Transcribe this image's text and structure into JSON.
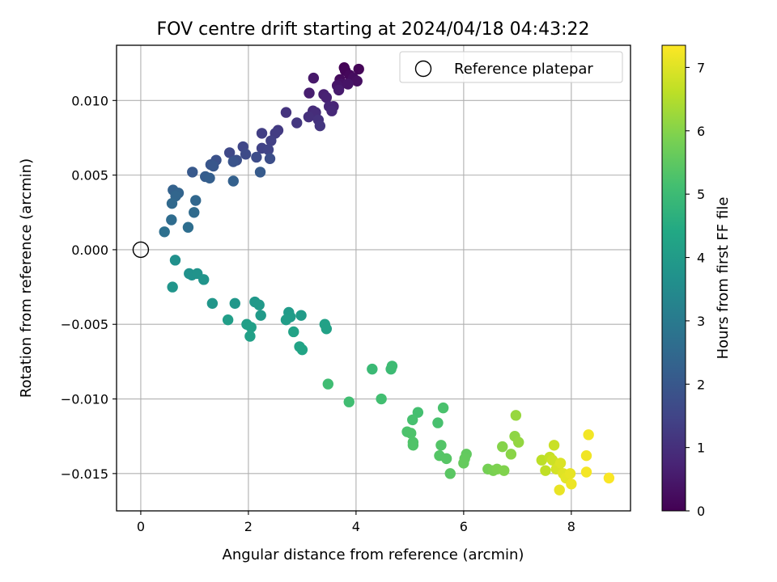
{
  "chart_data": {
    "type": "scatter",
    "title": "FOV centre drift starting at 2024/04/18 04:43:22",
    "xlabel": "Angular distance from reference (arcmin)",
    "ylabel": "Rotation from reference (arcmin)",
    "xlim": [
      -0.45,
      9.1
    ],
    "ylim": [
      -0.0175,
      0.0137
    ],
    "xticks": [
      0,
      2,
      4,
      6,
      8
    ],
    "xtick_labels": [
      "0",
      "2",
      "4",
      "6",
      "8"
    ],
    "yticks": [
      -0.015,
      -0.01,
      -0.005,
      0.0,
      0.005,
      0.01
    ],
    "ytick_labels": [
      "−0.015",
      "−0.010",
      "−0.005",
      "0.000",
      "0.005",
      "0.010"
    ],
    "grid": true,
    "legend": {
      "position": "top-right",
      "entries": [
        "Reference platepar"
      ]
    },
    "reference_point": {
      "x": 0.0,
      "y": 0.0
    },
    "colorbar": {
      "label": "Hours from first FF file",
      "colormap": "viridis",
      "range": [
        0,
        7.35
      ],
      "ticks": [
        0,
        1,
        2,
        3,
        4,
        5,
        6,
        7
      ],
      "tick_labels": [
        "0",
        "1",
        "2",
        "3",
        "4",
        "5",
        "6",
        "7"
      ]
    },
    "points": [
      {
        "x": 3.78,
        "y": 0.0122,
        "t": 0.05
      },
      {
        "x": 3.8,
        "y": 0.012,
        "t": 0.08
      },
      {
        "x": 4.05,
        "y": 0.0121,
        "t": 0.1
      },
      {
        "x": 3.88,
        "y": 0.0117,
        "t": 0.15
      },
      {
        "x": 3.7,
        "y": 0.0114,
        "t": 0.2
      },
      {
        "x": 3.95,
        "y": 0.0115,
        "t": 0.25
      },
      {
        "x": 4.02,
        "y": 0.0113,
        "t": 0.3
      },
      {
        "x": 3.72,
        "y": 0.0111,
        "t": 0.35
      },
      {
        "x": 3.85,
        "y": 0.0111,
        "t": 0.4
      },
      {
        "x": 3.65,
        "y": 0.011,
        "t": 0.45
      },
      {
        "x": 3.21,
        "y": 0.0115,
        "t": 0.5
      },
      {
        "x": 3.68,
        "y": 0.0107,
        "t": 0.55
      },
      {
        "x": 3.13,
        "y": 0.0105,
        "t": 0.6
      },
      {
        "x": 3.4,
        "y": 0.0104,
        "t": 0.65
      },
      {
        "x": 3.45,
        "y": 0.0102,
        "t": 0.7
      },
      {
        "x": 3.58,
        "y": 0.0096,
        "t": 0.75
      },
      {
        "x": 3.5,
        "y": 0.0096,
        "t": 0.8
      },
      {
        "x": 3.55,
        "y": 0.0093,
        "t": 0.85
      },
      {
        "x": 3.2,
        "y": 0.0093,
        "t": 0.9
      },
      {
        "x": 3.25,
        "y": 0.0092,
        "t": 0.95
      },
      {
        "x": 3.12,
        "y": 0.0089,
        "t": 1.0
      },
      {
        "x": 3.3,
        "y": 0.0087,
        "t": 1.05
      },
      {
        "x": 2.7,
        "y": 0.0092,
        "t": 1.1
      },
      {
        "x": 3.33,
        "y": 0.0083,
        "t": 1.15
      },
      {
        "x": 2.9,
        "y": 0.0085,
        "t": 1.2
      },
      {
        "x": 2.55,
        "y": 0.008,
        "t": 1.25
      },
      {
        "x": 2.5,
        "y": 0.0078,
        "t": 1.3
      },
      {
        "x": 2.25,
        "y": 0.0078,
        "t": 1.35
      },
      {
        "x": 2.42,
        "y": 0.0073,
        "t": 1.4
      },
      {
        "x": 2.25,
        "y": 0.0068,
        "t": 1.45
      },
      {
        "x": 2.37,
        "y": 0.0067,
        "t": 1.5
      },
      {
        "x": 1.9,
        "y": 0.0069,
        "t": 1.55
      },
      {
        "x": 1.65,
        "y": 0.0065,
        "t": 1.6
      },
      {
        "x": 1.95,
        "y": 0.0064,
        "t": 1.65
      },
      {
        "x": 2.15,
        "y": 0.0062,
        "t": 1.7
      },
      {
        "x": 2.4,
        "y": 0.0061,
        "t": 1.75
      },
      {
        "x": 1.78,
        "y": 0.006,
        "t": 1.8
      },
      {
        "x": 1.4,
        "y": 0.006,
        "t": 1.85
      },
      {
        "x": 1.72,
        "y": 0.0059,
        "t": 1.9
      },
      {
        "x": 1.3,
        "y": 0.0057,
        "t": 1.95
      },
      {
        "x": 1.35,
        "y": 0.0056,
        "t": 2.0
      },
      {
        "x": 0.96,
        "y": 0.0052,
        "t": 2.05
      },
      {
        "x": 2.22,
        "y": 0.0052,
        "t": 2.1
      },
      {
        "x": 1.2,
        "y": 0.0049,
        "t": 2.15
      },
      {
        "x": 1.28,
        "y": 0.0048,
        "t": 2.2
      },
      {
        "x": 1.72,
        "y": 0.0046,
        "t": 2.25
      },
      {
        "x": 0.6,
        "y": 0.004,
        "t": 2.3
      },
      {
        "x": 0.7,
        "y": 0.0038,
        "t": 2.35
      },
      {
        "x": 0.65,
        "y": 0.0036,
        "t": 2.4
      },
      {
        "x": 1.02,
        "y": 0.0033,
        "t": 2.45
      },
      {
        "x": 0.58,
        "y": 0.0031,
        "t": 2.5
      },
      {
        "x": 0.99,
        "y": 0.0025,
        "t": 2.55
      },
      {
        "x": 0.57,
        "y": 0.002,
        "t": 2.6
      },
      {
        "x": 0.88,
        "y": 0.0015,
        "t": 2.65
      },
      {
        "x": 0.44,
        "y": 0.0012,
        "t": 2.7
      },
      {
        "x": 0.64,
        "y": -0.0007,
        "t": 3.65
      },
      {
        "x": 0.9,
        "y": -0.0016,
        "t": 3.7
      },
      {
        "x": 0.95,
        "y": -0.0017,
        "t": 3.72
      },
      {
        "x": 1.05,
        "y": -0.0016,
        "t": 3.75
      },
      {
        "x": 1.17,
        "y": -0.002,
        "t": 3.78
      },
      {
        "x": 0.59,
        "y": -0.0025,
        "t": 3.8
      },
      {
        "x": 1.33,
        "y": -0.0036,
        "t": 3.85
      },
      {
        "x": 1.75,
        "y": -0.0036,
        "t": 3.88
      },
      {
        "x": 2.12,
        "y": -0.0035,
        "t": 3.9
      },
      {
        "x": 2.2,
        "y": -0.0037,
        "t": 3.92
      },
      {
        "x": 2.23,
        "y": -0.0044,
        "t": 3.95
      },
      {
        "x": 2.75,
        "y": -0.0042,
        "t": 3.98
      },
      {
        "x": 2.98,
        "y": -0.0044,
        "t": 4.0
      },
      {
        "x": 2.78,
        "y": -0.0045,
        "t": 4.02
      },
      {
        "x": 2.7,
        "y": -0.0047,
        "t": 4.05
      },
      {
        "x": 1.62,
        "y": -0.0047,
        "t": 4.08
      },
      {
        "x": 1.97,
        "y": -0.005,
        "t": 4.1
      },
      {
        "x": 2.05,
        "y": -0.0052,
        "t": 4.12
      },
      {
        "x": 2.03,
        "y": -0.0058,
        "t": 4.15
      },
      {
        "x": 3.42,
        "y": -0.005,
        "t": 4.18
      },
      {
        "x": 3.45,
        "y": -0.0053,
        "t": 4.2
      },
      {
        "x": 2.84,
        "y": -0.0055,
        "t": 4.22
      },
      {
        "x": 2.95,
        "y": -0.0065,
        "t": 4.25
      },
      {
        "x": 3.0,
        "y": -0.0067,
        "t": 4.28
      },
      {
        "x": 4.3,
        "y": -0.008,
        "t": 4.95
      },
      {
        "x": 4.65,
        "y": -0.008,
        "t": 5.0
      },
      {
        "x": 4.67,
        "y": -0.0078,
        "t": 5.02
      },
      {
        "x": 3.48,
        "y": -0.009,
        "t": 5.05
      },
      {
        "x": 3.87,
        "y": -0.0102,
        "t": 5.08
      },
      {
        "x": 4.47,
        "y": -0.01,
        "t": 5.1
      },
      {
        "x": 5.15,
        "y": -0.0109,
        "t": 5.15
      },
      {
        "x": 5.05,
        "y": -0.0114,
        "t": 5.18
      },
      {
        "x": 5.52,
        "y": -0.0116,
        "t": 5.2
      },
      {
        "x": 5.62,
        "y": -0.0106,
        "t": 5.22
      },
      {
        "x": 4.95,
        "y": -0.0122,
        "t": 5.25
      },
      {
        "x": 5.02,
        "y": -0.0123,
        "t": 5.28
      },
      {
        "x": 5.06,
        "y": -0.0129,
        "t": 5.3
      },
      {
        "x": 5.06,
        "y": -0.0131,
        "t": 5.32
      },
      {
        "x": 5.58,
        "y": -0.0131,
        "t": 5.35
      },
      {
        "x": 5.55,
        "y": -0.0138,
        "t": 5.38
      },
      {
        "x": 5.68,
        "y": -0.014,
        "t": 5.4
      },
      {
        "x": 5.75,
        "y": -0.015,
        "t": 5.45
      },
      {
        "x": 6.05,
        "y": -0.0137,
        "t": 5.55
      },
      {
        "x": 6.02,
        "y": -0.014,
        "t": 5.58
      },
      {
        "x": 6.0,
        "y": -0.0143,
        "t": 5.6
      },
      {
        "x": 6.45,
        "y": -0.0147,
        "t": 5.8
      },
      {
        "x": 6.55,
        "y": -0.0148,
        "t": 5.85
      },
      {
        "x": 6.62,
        "y": -0.0147,
        "t": 5.9
      },
      {
        "x": 6.75,
        "y": -0.0148,
        "t": 5.95
      },
      {
        "x": 6.72,
        "y": -0.0132,
        "t": 6.0
      },
      {
        "x": 6.88,
        "y": -0.0137,
        "t": 6.05
      },
      {
        "x": 6.95,
        "y": -0.0125,
        "t": 6.1
      },
      {
        "x": 7.02,
        "y": -0.0129,
        "t": 6.15
      },
      {
        "x": 6.97,
        "y": -0.0111,
        "t": 6.2
      },
      {
        "x": 7.45,
        "y": -0.0141,
        "t": 6.6
      },
      {
        "x": 7.52,
        "y": -0.0148,
        "t": 6.65
      },
      {
        "x": 7.6,
        "y": -0.0139,
        "t": 6.7
      },
      {
        "x": 7.68,
        "y": -0.0131,
        "t": 6.75
      },
      {
        "x": 7.65,
        "y": -0.0141,
        "t": 6.8
      },
      {
        "x": 7.72,
        "y": -0.0147,
        "t": 6.85
      },
      {
        "x": 7.75,
        "y": -0.0146,
        "t": 6.9
      },
      {
        "x": 7.8,
        "y": -0.0143,
        "t": 6.95
      },
      {
        "x": 7.85,
        "y": -0.015,
        "t": 7.0
      },
      {
        "x": 7.9,
        "y": -0.0153,
        "t": 7.05
      },
      {
        "x": 7.98,
        "y": -0.015,
        "t": 7.1
      },
      {
        "x": 7.78,
        "y": -0.0161,
        "t": 7.12
      },
      {
        "x": 8.0,
        "y": -0.0157,
        "t": 7.15
      },
      {
        "x": 8.28,
        "y": -0.0138,
        "t": 7.2
      },
      {
        "x": 8.32,
        "y": -0.0124,
        "t": 7.22
      },
      {
        "x": 8.28,
        "y": -0.0149,
        "t": 7.25
      },
      {
        "x": 8.7,
        "y": -0.0153,
        "t": 7.3
      }
    ]
  }
}
